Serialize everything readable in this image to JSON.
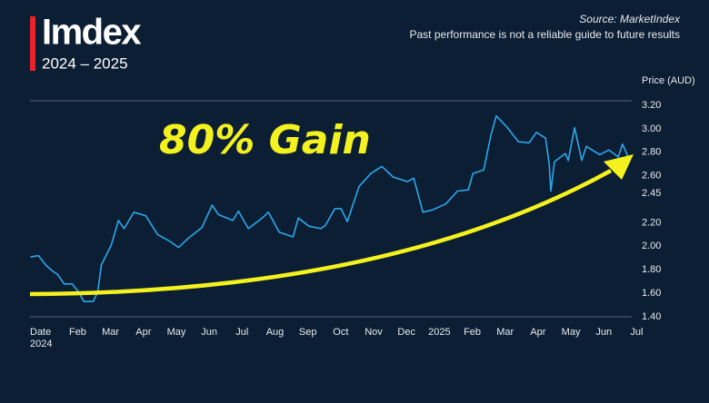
{
  "chart_data": {
    "type": "line",
    "title": "Imdex",
    "subtitle": "2024 – 2025",
    "source": "Source: MarketIndex",
    "note": "Past performance is not a reliable guide to future results",
    "annotation": "80% Gain",
    "ylabel": "Price (AUD)",
    "xlabel": "Date",
    "xlim": [
      -0.45,
      17.85
    ],
    "ylim": [
      1.4,
      3.2
    ],
    "xticks": [
      {
        "value": 0,
        "label": "2024"
      },
      {
        "value": 1,
        "label": "Feb"
      },
      {
        "value": 2,
        "label": "Mar"
      },
      {
        "value": 3,
        "label": "Apr"
      },
      {
        "value": 4,
        "label": "May"
      },
      {
        "value": 5,
        "label": "Jun"
      },
      {
        "value": 6,
        "label": "Jul"
      },
      {
        "value": 7,
        "label": "Aug"
      },
      {
        "value": 8,
        "label": "Sep"
      },
      {
        "value": 9,
        "label": "Oct"
      },
      {
        "value": 10,
        "label": "Nov"
      },
      {
        "value": 11,
        "label": "Dec"
      },
      {
        "value": 12,
        "label": "2025"
      },
      {
        "value": 13,
        "label": "Feb"
      },
      {
        "value": 14,
        "label": "Mar"
      },
      {
        "value": 15,
        "label": "Apr"
      },
      {
        "value": 16,
        "label": "May"
      },
      {
        "value": 17,
        "label": "Jun"
      },
      {
        "value": 18,
        "label": "Jul"
      }
    ],
    "yticks": [
      {
        "value": 1.4,
        "label": "1.40"
      },
      {
        "value": 1.6,
        "label": "1.60"
      },
      {
        "value": 1.8,
        "label": "1.80"
      },
      {
        "value": 2.0,
        "label": "2.00"
      },
      {
        "value": 2.2,
        "label": "2.20"
      },
      {
        "value": 2.45,
        "label": "2.45"
      },
      {
        "value": 2.6,
        "label": "2.60"
      },
      {
        "value": 2.8,
        "label": "2.80"
      },
      {
        "value": 3.0,
        "label": "3.00"
      },
      {
        "value": 3.2,
        "label": "3.20"
      }
    ],
    "grid": false,
    "series": [
      {
        "color": "#2ba8ea",
        "x": [
          -0.44,
          -0.19,
          0.03,
          0.23,
          0.39,
          0.59,
          0.83,
          1.03,
          1.19,
          1.47,
          1.61,
          1.72,
          2.02,
          2.24,
          2.41,
          2.71,
          3.07,
          3.43,
          3.76,
          4.07,
          4.37,
          4.78,
          5.09,
          5.28,
          5.72,
          5.89,
          6.19,
          6.61,
          6.8,
          7.13,
          7.55,
          7.71,
          8.04,
          8.4,
          8.54,
          8.82,
          9.01,
          9.2,
          9.56,
          9.92,
          10.25,
          10.59,
          11.03,
          11.22,
          11.5,
          11.8,
          12.19,
          12.55,
          12.88,
          13.02,
          13.35,
          13.57,
          13.73,
          14.07,
          14.4,
          14.73,
          14.95,
          15.23,
          15.34,
          15.39,
          15.5,
          15.83,
          15.92,
          16.11,
          16.33,
          16.47,
          16.88,
          17.16,
          17.44,
          17.57,
          17.77
        ],
        "values": [
          1.91,
          1.92,
          1.84,
          1.79,
          1.76,
          1.68,
          1.68,
          1.61,
          1.53,
          1.53,
          1.61,
          1.84,
          2.01,
          2.22,
          2.15,
          2.29,
          2.26,
          2.1,
          2.05,
          1.99,
          2.07,
          2.16,
          2.35,
          2.27,
          2.22,
          2.3,
          2.15,
          2.24,
          2.29,
          2.12,
          2.08,
          2.24,
          2.17,
          2.15,
          2.18,
          2.32,
          2.32,
          2.21,
          2.51,
          2.62,
          2.68,
          2.59,
          2.55,
          2.58,
          2.29,
          2.31,
          2.36,
          2.47,
          2.48,
          2.62,
          2.65,
          2.95,
          3.11,
          3.01,
          2.89,
          2.88,
          2.97,
          2.92,
          2.7,
          2.47,
          2.72,
          2.79,
          2.73,
          3.01,
          2.73,
          2.85,
          2.78,
          2.82,
          2.76,
          2.87,
          2.74
        ]
      }
    ]
  }
}
